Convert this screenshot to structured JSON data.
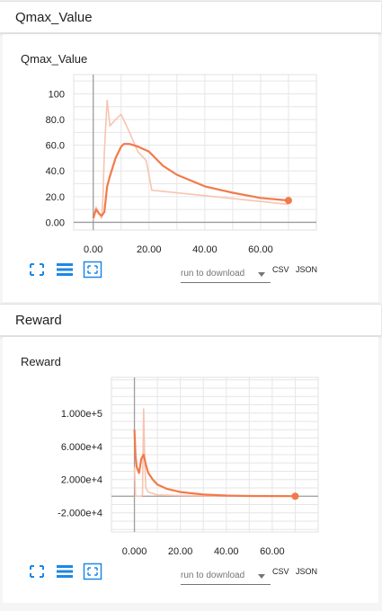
{
  "sections": [
    {
      "header": "Qmax_Value",
      "card_title": "Qmax_Value",
      "download": {
        "select_label": "run to download",
        "csv": "CSV",
        "json": "JSON"
      },
      "chart_data": {
        "type": "line",
        "x_ticks": [
          "0.00",
          "20.00",
          "40.00",
          "60.00"
        ],
        "y_ticks": [
          "0.00",
          "20.0",
          "40.0",
          "60.0",
          "80.0",
          "100"
        ],
        "xlim": [
          -7,
          80
        ],
        "ylim": [
          -6,
          115
        ],
        "series": [
          {
            "role": "raw",
            "color": "#f8c4b0",
            "x": [
              0,
              0.5,
              1,
              2,
              3,
              3.5,
              4,
              5,
              6,
              8,
              10,
              13,
              16,
              19,
              21,
              70
            ],
            "y": [
              2,
              6,
              12,
              8,
              3,
              20,
              55,
              95,
              75,
              80,
              84,
              70,
              55,
              48,
              25,
              14
            ]
          },
          {
            "role": "smoothed",
            "color": "#f27a4a",
            "x": [
              0,
              1,
              2,
              3,
              4,
              5,
              6,
              8,
              10,
              11,
              13,
              16,
              20,
              25,
              30,
              40,
              50,
              60,
              70
            ],
            "y": [
              3,
              10,
              7,
              5,
              8,
              28,
              36,
              50,
              59,
              61,
              61,
              59,
              55,
              44,
              37,
              28,
              23,
              19,
              17
            ]
          }
        ]
      }
    },
    {
      "header": "Reward",
      "card_title": "Reward",
      "download": {
        "select_label": "run to download",
        "csv": "CSV",
        "json": "JSON"
      },
      "chart_data": {
        "type": "line",
        "x_ticks": [
          "0.000",
          "20.00",
          "40.00",
          "60.00"
        ],
        "y_ticks": [
          "-2.000e+4",
          "2.000e+4",
          "6.000e+4",
          "1.000e+5"
        ],
        "xlim": [
          -10,
          80
        ],
        "ylim": [
          -43000,
          143000
        ],
        "series": [
          {
            "role": "raw",
            "color": "#f8c4b0",
            "x": [
              0,
              0.5,
              1,
              2,
              3,
              3.5,
              4,
              4.5,
              5,
              6,
              10,
              20,
              30,
              40,
              70
            ],
            "y": [
              35000,
              0,
              0,
              0,
              0,
              1000,
              105000,
              40000,
              10000,
              5000,
              1500,
              800,
              500,
              200,
              0
            ]
          },
          {
            "role": "smoothed",
            "color": "#f27a4a",
            "x": [
              0,
              0.5,
              1,
              2,
              3,
              4,
              5,
              6,
              8,
              10,
              14,
              20,
              30,
              40,
              50,
              70
            ],
            "y": [
              80000,
              48000,
              35000,
              28000,
              45000,
              50000,
              38000,
              28000,
              20000,
              14000,
              9000,
              5000,
              2000,
              800,
              300,
              0
            ]
          }
        ]
      }
    }
  ]
}
